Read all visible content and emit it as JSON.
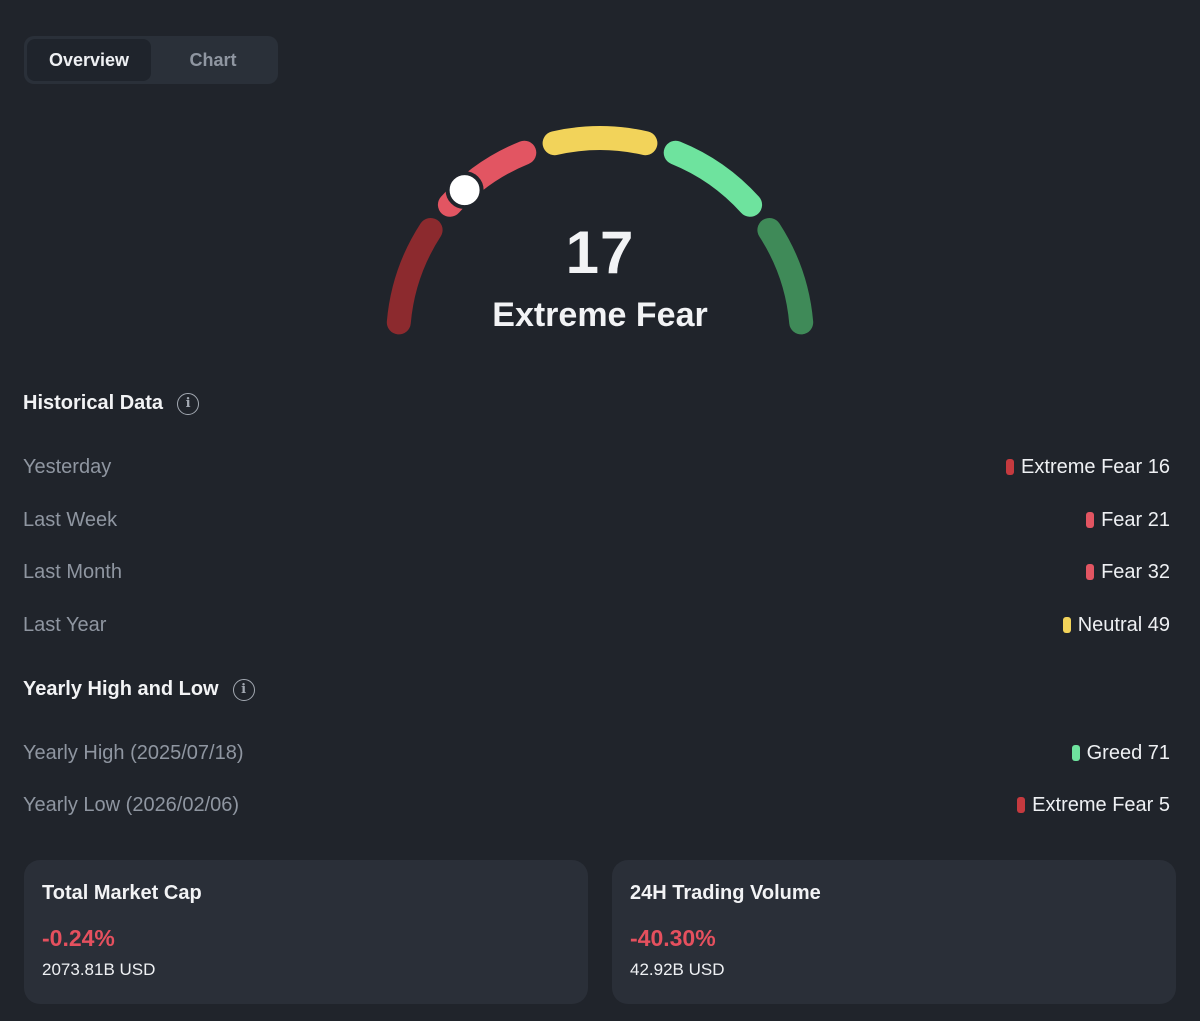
{
  "tabs": [
    {
      "label": "Overview",
      "active": true
    },
    {
      "label": "Chart",
      "active": false
    }
  ],
  "gauge": {
    "value": "17",
    "label": "Extreme Fear",
    "score": 17,
    "segment_colors": [
      "#8c2a2e",
      "#e25562",
      "#f2d35a",
      "#6ee39e",
      "#3f8a58"
    ],
    "pointer_color": "#ffffff"
  },
  "historical": {
    "title": "Historical Data",
    "rows": [
      {
        "label": "Yesterday",
        "value": "Extreme Fear 16",
        "color": "#c53a3f"
      },
      {
        "label": "Last Week",
        "value": "Fear 21",
        "color": "#e25562"
      },
      {
        "label": "Last Month",
        "value": "Fear 32",
        "color": "#e25562"
      },
      {
        "label": "Last Year",
        "value": "Neutral 49",
        "color": "#f2d35a"
      }
    ]
  },
  "yearly": {
    "title": "Yearly High and Low",
    "rows": [
      {
        "label": "Yearly High (2025/07/18)",
        "value": "Greed 71",
        "color": "#6ee39e"
      },
      {
        "label": "Yearly Low (2026/02/06)",
        "value": "Extreme Fear 5",
        "color": "#c53a3f"
      }
    ]
  },
  "cards": [
    {
      "title": "Total Market Cap",
      "change": "-0.24%",
      "value": "2073.81B USD"
    },
    {
      "title": "24H Trading Volume",
      "change": "-40.30%",
      "value": "42.92B USD"
    }
  ],
  "icons": {
    "info": "info-icon"
  }
}
